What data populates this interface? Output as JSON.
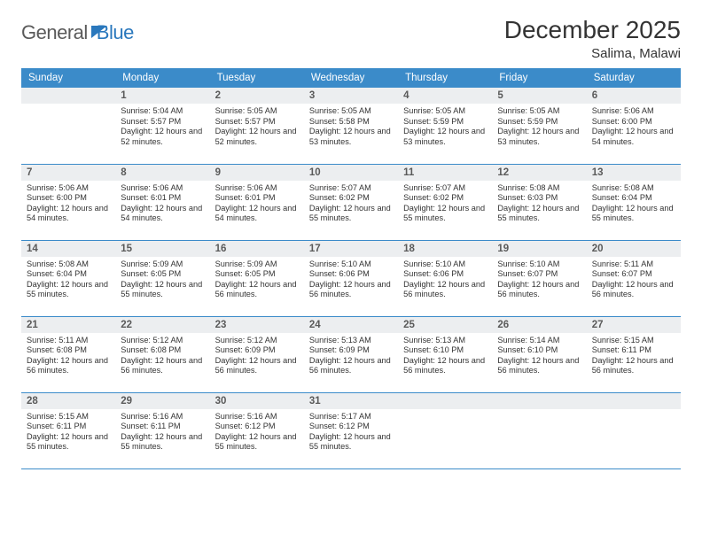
{
  "brand": {
    "part1": "General",
    "part2": "Blue"
  },
  "title": "December 2025",
  "location": "Salima, Malawi",
  "colors": {
    "header_bg": "#3b8bc9",
    "header_text": "#ffffff",
    "daynum_bg": "#eceef0",
    "daynum_text": "#5a5a5a",
    "body_text": "#333333",
    "rule": "#3b8bc9",
    "brand_gray": "#5a5a5a",
    "brand_blue": "#2a78bd",
    "page_bg": "#ffffff"
  },
  "day_names": [
    "Sunday",
    "Monday",
    "Tuesday",
    "Wednesday",
    "Thursday",
    "Friday",
    "Saturday"
  ],
  "weeks": [
    [
      {
        "n": "",
        "sr": "",
        "ss": "",
        "dl": ""
      },
      {
        "n": "1",
        "sr": "Sunrise: 5:04 AM",
        "ss": "Sunset: 5:57 PM",
        "dl": "Daylight: 12 hours and 52 minutes."
      },
      {
        "n": "2",
        "sr": "Sunrise: 5:05 AM",
        "ss": "Sunset: 5:57 PM",
        "dl": "Daylight: 12 hours and 52 minutes."
      },
      {
        "n": "3",
        "sr": "Sunrise: 5:05 AM",
        "ss": "Sunset: 5:58 PM",
        "dl": "Daylight: 12 hours and 53 minutes."
      },
      {
        "n": "4",
        "sr": "Sunrise: 5:05 AM",
        "ss": "Sunset: 5:59 PM",
        "dl": "Daylight: 12 hours and 53 minutes."
      },
      {
        "n": "5",
        "sr": "Sunrise: 5:05 AM",
        "ss": "Sunset: 5:59 PM",
        "dl": "Daylight: 12 hours and 53 minutes."
      },
      {
        "n": "6",
        "sr": "Sunrise: 5:06 AM",
        "ss": "Sunset: 6:00 PM",
        "dl": "Daylight: 12 hours and 54 minutes."
      }
    ],
    [
      {
        "n": "7",
        "sr": "Sunrise: 5:06 AM",
        "ss": "Sunset: 6:00 PM",
        "dl": "Daylight: 12 hours and 54 minutes."
      },
      {
        "n": "8",
        "sr": "Sunrise: 5:06 AM",
        "ss": "Sunset: 6:01 PM",
        "dl": "Daylight: 12 hours and 54 minutes."
      },
      {
        "n": "9",
        "sr": "Sunrise: 5:06 AM",
        "ss": "Sunset: 6:01 PM",
        "dl": "Daylight: 12 hours and 54 minutes."
      },
      {
        "n": "10",
        "sr": "Sunrise: 5:07 AM",
        "ss": "Sunset: 6:02 PM",
        "dl": "Daylight: 12 hours and 55 minutes."
      },
      {
        "n": "11",
        "sr": "Sunrise: 5:07 AM",
        "ss": "Sunset: 6:02 PM",
        "dl": "Daylight: 12 hours and 55 minutes."
      },
      {
        "n": "12",
        "sr": "Sunrise: 5:08 AM",
        "ss": "Sunset: 6:03 PM",
        "dl": "Daylight: 12 hours and 55 minutes."
      },
      {
        "n": "13",
        "sr": "Sunrise: 5:08 AM",
        "ss": "Sunset: 6:04 PM",
        "dl": "Daylight: 12 hours and 55 minutes."
      }
    ],
    [
      {
        "n": "14",
        "sr": "Sunrise: 5:08 AM",
        "ss": "Sunset: 6:04 PM",
        "dl": "Daylight: 12 hours and 55 minutes."
      },
      {
        "n": "15",
        "sr": "Sunrise: 5:09 AM",
        "ss": "Sunset: 6:05 PM",
        "dl": "Daylight: 12 hours and 55 minutes."
      },
      {
        "n": "16",
        "sr": "Sunrise: 5:09 AM",
        "ss": "Sunset: 6:05 PM",
        "dl": "Daylight: 12 hours and 56 minutes."
      },
      {
        "n": "17",
        "sr": "Sunrise: 5:10 AM",
        "ss": "Sunset: 6:06 PM",
        "dl": "Daylight: 12 hours and 56 minutes."
      },
      {
        "n": "18",
        "sr": "Sunrise: 5:10 AM",
        "ss": "Sunset: 6:06 PM",
        "dl": "Daylight: 12 hours and 56 minutes."
      },
      {
        "n": "19",
        "sr": "Sunrise: 5:10 AM",
        "ss": "Sunset: 6:07 PM",
        "dl": "Daylight: 12 hours and 56 minutes."
      },
      {
        "n": "20",
        "sr": "Sunrise: 5:11 AM",
        "ss": "Sunset: 6:07 PM",
        "dl": "Daylight: 12 hours and 56 minutes."
      }
    ],
    [
      {
        "n": "21",
        "sr": "Sunrise: 5:11 AM",
        "ss": "Sunset: 6:08 PM",
        "dl": "Daylight: 12 hours and 56 minutes."
      },
      {
        "n": "22",
        "sr": "Sunrise: 5:12 AM",
        "ss": "Sunset: 6:08 PM",
        "dl": "Daylight: 12 hours and 56 minutes."
      },
      {
        "n": "23",
        "sr": "Sunrise: 5:12 AM",
        "ss": "Sunset: 6:09 PM",
        "dl": "Daylight: 12 hours and 56 minutes."
      },
      {
        "n": "24",
        "sr": "Sunrise: 5:13 AM",
        "ss": "Sunset: 6:09 PM",
        "dl": "Daylight: 12 hours and 56 minutes."
      },
      {
        "n": "25",
        "sr": "Sunrise: 5:13 AM",
        "ss": "Sunset: 6:10 PM",
        "dl": "Daylight: 12 hours and 56 minutes."
      },
      {
        "n": "26",
        "sr": "Sunrise: 5:14 AM",
        "ss": "Sunset: 6:10 PM",
        "dl": "Daylight: 12 hours and 56 minutes."
      },
      {
        "n": "27",
        "sr": "Sunrise: 5:15 AM",
        "ss": "Sunset: 6:11 PM",
        "dl": "Daylight: 12 hours and 56 minutes."
      }
    ],
    [
      {
        "n": "28",
        "sr": "Sunrise: 5:15 AM",
        "ss": "Sunset: 6:11 PM",
        "dl": "Daylight: 12 hours and 55 minutes."
      },
      {
        "n": "29",
        "sr": "Sunrise: 5:16 AM",
        "ss": "Sunset: 6:11 PM",
        "dl": "Daylight: 12 hours and 55 minutes."
      },
      {
        "n": "30",
        "sr": "Sunrise: 5:16 AM",
        "ss": "Sunset: 6:12 PM",
        "dl": "Daylight: 12 hours and 55 minutes."
      },
      {
        "n": "31",
        "sr": "Sunrise: 5:17 AM",
        "ss": "Sunset: 6:12 PM",
        "dl": "Daylight: 12 hours and 55 minutes."
      },
      {
        "n": "",
        "sr": "",
        "ss": "",
        "dl": ""
      },
      {
        "n": "",
        "sr": "",
        "ss": "",
        "dl": ""
      },
      {
        "n": "",
        "sr": "",
        "ss": "",
        "dl": ""
      }
    ]
  ]
}
